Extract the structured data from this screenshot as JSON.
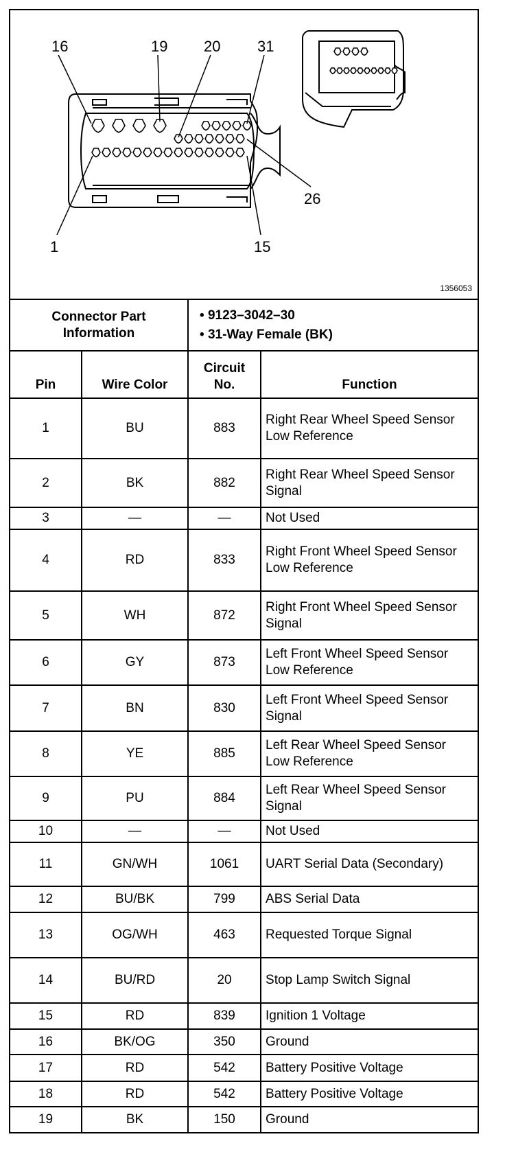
{
  "diagram": {
    "pin_labels": [
      "16",
      "19",
      "20",
      "31",
      "26",
      "1",
      "15"
    ],
    "figure_code": "1356053"
  },
  "connector_info": {
    "label": "Connector Part Information",
    "items": [
      "9123–3042–30",
      "31-Way Female (BK)"
    ]
  },
  "headers": {
    "pin": "Pin",
    "wire_color": "Wire Color",
    "circuit": "Circuit No.",
    "function": "Function"
  },
  "rows": [
    {
      "pin": "1",
      "wire": "BU",
      "circuit": "883",
      "function": "Right Rear Wheel Speed Sensor Low Reference"
    },
    {
      "pin": "2",
      "wire": "BK",
      "circuit": "882",
      "function": "Right Rear Wheel Speed Sensor Signal"
    },
    {
      "pin": "3",
      "wire": "—",
      "circuit": "—",
      "function": "Not Used"
    },
    {
      "pin": "4",
      "wire": "RD",
      "circuit": "833",
      "function": "Right Front Wheel Speed Sensor Low Reference"
    },
    {
      "pin": "5",
      "wire": "WH",
      "circuit": "872",
      "function": "Right Front Wheel Speed Sensor Signal"
    },
    {
      "pin": "6",
      "wire": "GY",
      "circuit": "873",
      "function": "Left Front Wheel Speed Sensor Low Reference"
    },
    {
      "pin": "7",
      "wire": "BN",
      "circuit": "830",
      "function": "Left Front Wheel Speed Sensor Signal"
    },
    {
      "pin": "8",
      "wire": "YE",
      "circuit": "885",
      "function": "Left Rear Wheel Speed Sensor Low Reference"
    },
    {
      "pin": "9",
      "wire": "PU",
      "circuit": "884",
      "function": "Left Rear Wheel Speed Sensor Signal"
    },
    {
      "pin": "10",
      "wire": "—",
      "circuit": "—",
      "function": "Not Used"
    },
    {
      "pin": "11",
      "wire": "GN/WH",
      "circuit": "1061",
      "function": "UART Serial Data (Secondary)"
    },
    {
      "pin": "12",
      "wire": "BU/BK",
      "circuit": "799",
      "function": "ABS Serial Data"
    },
    {
      "pin": "13",
      "wire": "OG/WH",
      "circuit": "463",
      "function": "Requested Torque Signal"
    },
    {
      "pin": "14",
      "wire": "BU/RD",
      "circuit": "20",
      "function": "Stop Lamp Switch Signal"
    },
    {
      "pin": "15",
      "wire": "RD",
      "circuit": "839",
      "function": "Ignition 1 Voltage"
    },
    {
      "pin": "16",
      "wire": "BK/OG",
      "circuit": "350",
      "function": "Ground"
    },
    {
      "pin": "17",
      "wire": "RD",
      "circuit": "542",
      "function": "Battery Positive Voltage"
    },
    {
      "pin": "18",
      "wire": "RD",
      "circuit": "542",
      "function": "Battery Positive Voltage"
    },
    {
      "pin": "19",
      "wire": "BK",
      "circuit": "150",
      "function": "Ground"
    }
  ]
}
